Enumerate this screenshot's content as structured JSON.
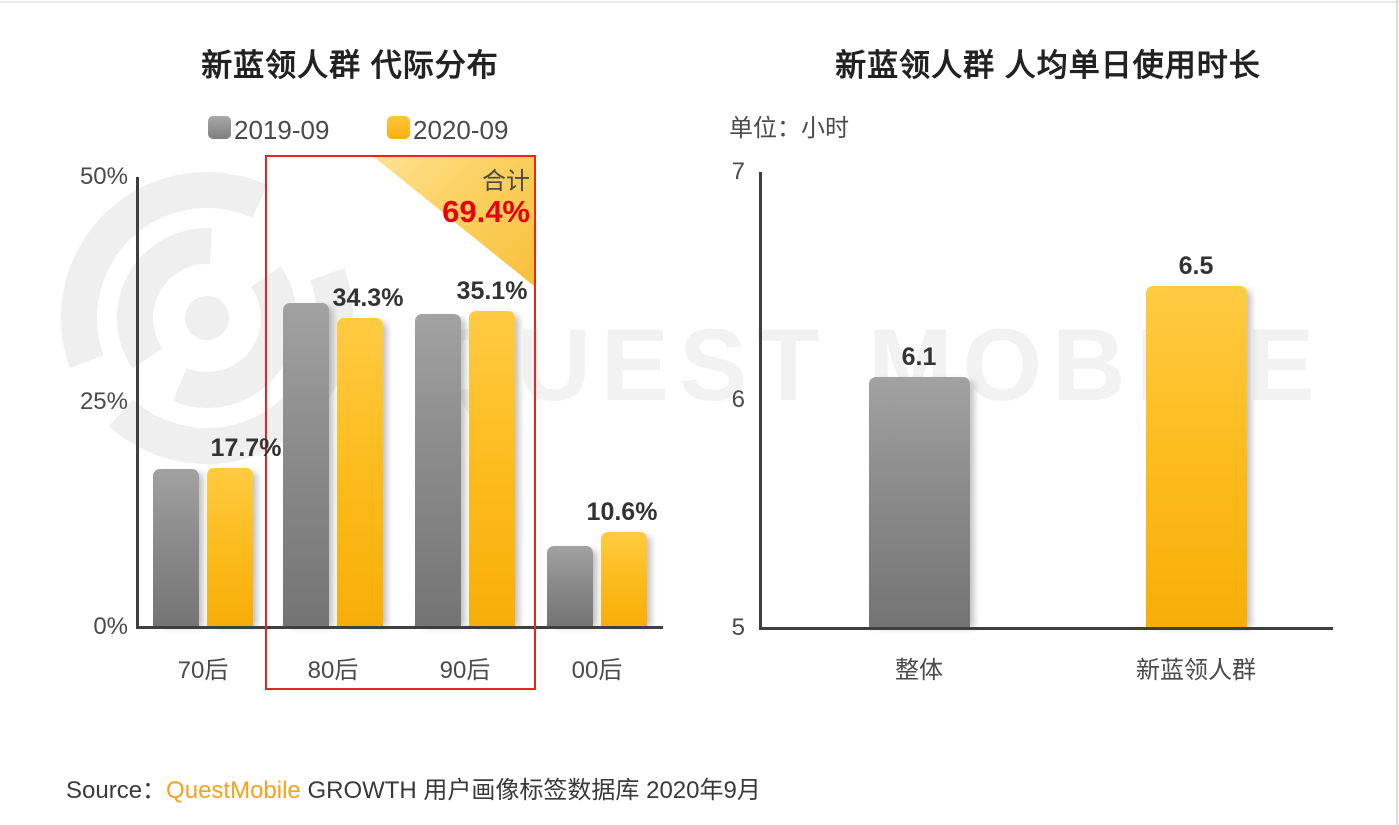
{
  "watermark": {
    "text": "QUEST MOBILE",
    "logo": "questmobile-bullseye-logo"
  },
  "source": {
    "prefix": "Source：",
    "brand": "QuestMobile",
    "suffix": " GROWTH 用户画像标签数据库 2020年9月"
  },
  "colors": {
    "series_2019": "#8c8c8c",
    "series_2020": "#fbb917",
    "highlight_red": "#e8261f",
    "total_value_red": "#e60012",
    "brand_orange": "#f7a21b"
  },
  "chart_data": [
    {
      "type": "bar",
      "title": "新蓝领人群 代际分布",
      "categories": [
        "70后",
        "80后",
        "90后",
        "00后"
      ],
      "series": [
        {
          "name": "2019-09",
          "color": "gray",
          "values": [
            17.5,
            36.0,
            34.8,
            9.0
          ],
          "values_estimated_from_gridlines": true,
          "labels": [
            "",
            "",
            "",
            ""
          ]
        },
        {
          "name": "2020-09",
          "color": "yellow",
          "values": [
            17.7,
            34.3,
            35.1,
            10.6
          ],
          "labels": [
            "17.7%",
            "34.3%",
            "35.1%",
            "10.6%"
          ]
        }
      ],
      "yticks": [
        {
          "label": "0%",
          "value": 0
        },
        {
          "label": "25%",
          "value": 25
        },
        {
          "label": "50%",
          "value": 50
        }
      ],
      "ylim": [
        0,
        50
      ],
      "grid": false,
      "legend_position": "top",
      "annotation": {
        "label": "合计",
        "value": "69.4%",
        "boxed_categories": [
          "80后",
          "90后"
        ]
      }
    },
    {
      "type": "bar",
      "title": "新蓝领人群 人均单日使用时长",
      "unit_label": "单位：小时",
      "categories": [
        "整体",
        "新蓝领人群"
      ],
      "series": [
        {
          "name": "人均单日使用时长",
          "colors": [
            "gray",
            "yellow"
          ],
          "values": [
            6.1,
            6.5
          ],
          "labels": [
            "6.1",
            "6.5"
          ]
        }
      ],
      "yticks": [
        {
          "label": "5",
          "value": 5
        },
        {
          "label": "6",
          "value": 6
        },
        {
          "label": "7",
          "value": 7
        }
      ],
      "ylim": [
        5,
        7
      ],
      "grid": false
    }
  ]
}
